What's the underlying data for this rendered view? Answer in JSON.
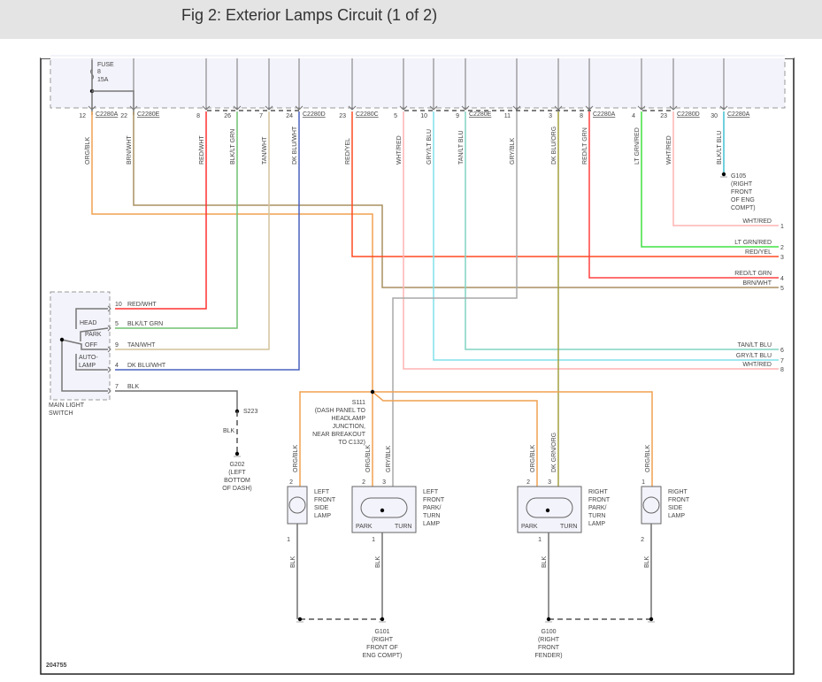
{
  "header": {
    "title": "Fig 2: Exterior Lamps Circuit (1 of 2)"
  },
  "fuse": {
    "label": "FUSE",
    "number": "8",
    "rating": "15A"
  },
  "top_pins": [
    {
      "pin": "12",
      "connector": "C2280A",
      "wire": "ORG/BLK",
      "color": "#f0a050"
    },
    {
      "pin": "22",
      "connector": "C2280E",
      "wire": "BRN/WHT",
      "color": "#a89060"
    },
    {
      "pin": "8",
      "connector": "",
      "wire": "RED/WHT",
      "color": "#ff3030"
    },
    {
      "pin": "26",
      "connector": "",
      "wire": "BLK/LT GRN",
      "color": "#70c070"
    },
    {
      "pin": "7",
      "connector": "",
      "wire": "TAN/WHT",
      "color": "#d4c49c"
    },
    {
      "pin": "24",
      "connector": "C2280D",
      "wire": "DK BLU/WHT",
      "color": "#4a62c0"
    },
    {
      "pin": "23",
      "connector": "C2280C",
      "wire": "RED/YEL",
      "color": "#ff4a20"
    },
    {
      "pin": "5",
      "connector": "",
      "wire": "WHT/RED",
      "color": "#ffb4b4"
    },
    {
      "pin": "10",
      "connector": "",
      "wire": "GRY/LT BLU",
      "color": "#80e0e8"
    },
    {
      "pin": "9",
      "connector": "C2280E",
      "wire": "TAN/LT BLU",
      "color": "#80d4c4"
    },
    {
      "pin": "11",
      "connector": "",
      "wire": "GRY/BLK",
      "color": "#a8a8a8"
    },
    {
      "pin": "3",
      "connector": "",
      "wire": "DK BLU/ORG",
      "color": "#a0a040"
    },
    {
      "pin": "8",
      "connector": "C2280A",
      "wire": "RED/LT GRN",
      "color": "#ff4040"
    },
    {
      "pin": "4",
      "connector": "",
      "wire": "LT GRN/RED",
      "color": "#40e040"
    },
    {
      "pin": "23",
      "connector": "C2280D",
      "wire": "WHT/RED",
      "color": "#ffb4b4"
    },
    {
      "pin": "30",
      "connector": "C2280A",
      "wire": "BLK/LT BLU",
      "color": "#40c0d0"
    }
  ],
  "right_outputs": [
    {
      "wire": "WHT/RED",
      "num": "1"
    },
    {
      "wire": "LT GRN/RED",
      "num": "2"
    },
    {
      "wire": "RED/YEL",
      "num": "3"
    },
    {
      "wire": "RED/LT GRN",
      "num": "4"
    },
    {
      "wire": "BRN/WHT",
      "num": "5"
    },
    {
      "wire": "TAN/LT BLU",
      "num": "6"
    },
    {
      "wire": "GRY/LT BLU",
      "num": "7"
    },
    {
      "wire": "WHT/RED",
      "num": "8"
    }
  ],
  "switch": {
    "name": [
      "MAIN LIGHT",
      "SWITCH"
    ],
    "positions": [
      "HEAD",
      "PARK",
      "OFF",
      "AUTO-",
      "LAMP"
    ],
    "pins": [
      {
        "pin": "10",
        "wire": "RED/WHT"
      },
      {
        "pin": "5",
        "wire": "BLK/LT GRN"
      },
      {
        "pin": "9",
        "wire": "TAN/WHT"
      },
      {
        "pin": "4",
        "wire": "DK BLU/WHT"
      },
      {
        "pin": "7",
        "wire": "BLK"
      }
    ]
  },
  "splices": {
    "s223": {
      "label": "S223",
      "wire": "BLK"
    },
    "s111": [
      "S111",
      "(DASH PANEL TO",
      "HEADLAMP",
      "JUNCTION,",
      "NEAR BREAKOUT",
      "TO C132)"
    ]
  },
  "grounds": {
    "g202": [
      "G202",
      "(LEFT",
      "BOTTOM",
      "OF DASH)"
    ],
    "g105": [
      "G105",
      "(RIGHT",
      "FRONT",
      "OF ENG",
      "COMPT)"
    ],
    "g101": [
      "G101",
      "(RIGHT",
      "FRONT OF",
      "ENG COMPT)"
    ],
    "g100": [
      "G100",
      "(RIGHT",
      "FRONT",
      "FENDER)"
    ]
  },
  "lamps": [
    {
      "name": [
        "LEFT",
        "FRONT",
        "SIDE",
        "LAMP"
      ],
      "pins_top": [
        {
          "pin": "2",
          "wire": "ORG/BLK"
        }
      ],
      "pin_bottom": "1",
      "wire_bottom": "BLK"
    },
    {
      "name": [
        "LEFT",
        "FRONT",
        "PARK/",
        "TURN",
        "LAMP"
      ],
      "pins_top": [
        {
          "pin": "2",
          "wire": "ORG/BLK"
        },
        {
          "pin": "3",
          "wire": "GRY/BLK"
        }
      ],
      "pin_bottom": "1",
      "wire_bottom": "BLK",
      "park": "PARK",
      "turn": "TURN"
    },
    {
      "name": [
        "RIGHT",
        "FRONT",
        "PARK/",
        "TURN",
        "LAMP"
      ],
      "pins_top": [
        {
          "pin": "2",
          "wire": "ORG/BLK"
        },
        {
          "pin": "3",
          "wire": "DK GRN/ORG"
        }
      ],
      "pin_bottom": "1",
      "wire_bottom": "BLK",
      "park": "PARK",
      "turn": "TURN"
    },
    {
      "name": [
        "RIGHT",
        "FRONT",
        "SIDE",
        "LAMP"
      ],
      "pins_top": [
        {
          "pin": "1",
          "wire": "ORG/BLK"
        }
      ],
      "pin_bottom": "2",
      "wire_bottom": "BLK"
    }
  ],
  "figure_id": "204755"
}
